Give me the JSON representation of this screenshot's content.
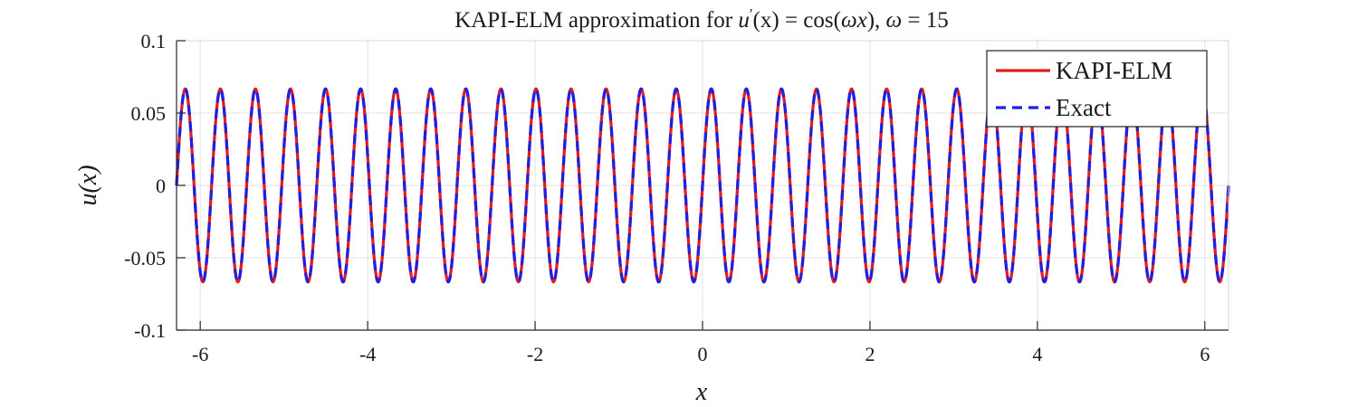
{
  "chart_data": {
    "type": "line",
    "title": {
      "prefix": "KAPI-ELM approximation for ",
      "lhs": "u",
      "prime": "′",
      "arg": "(x) = cos(",
      "omega_symbol": "ω",
      "x_symbol": "x",
      "close": "), ",
      "omega_eq": " = 15"
    },
    "xlabel": "x",
    "ylabel": "u(x)",
    "xlim": [
      -6.2832,
      6.2832
    ],
    "ylim": [
      -0.1,
      0.1
    ],
    "xticks": [
      -6,
      -4,
      -2,
      0,
      2,
      4,
      6
    ],
    "xtick_labels": [
      "-6",
      "-4",
      "-2",
      "0",
      "2",
      "4",
      "6"
    ],
    "yticks": [
      -0.1,
      -0.05,
      0,
      0.05,
      0.1
    ],
    "ytick_labels": [
      "-0.1",
      "-0.05",
      "0",
      "0.05",
      "0.1"
    ],
    "grid": true,
    "legend_position": "top-right",
    "function": {
      "expression": "sin(omega*x)/omega",
      "omega": 15,
      "x_range": [
        -6.2832,
        6.2832
      ],
      "amplitude": 0.0667
    },
    "series": [
      {
        "name": "KAPI-ELM",
        "color": "#e41a1c",
        "style": "solid"
      },
      {
        "name": "Exact",
        "color": "#1f1fe0",
        "style": "dashed"
      }
    ]
  }
}
